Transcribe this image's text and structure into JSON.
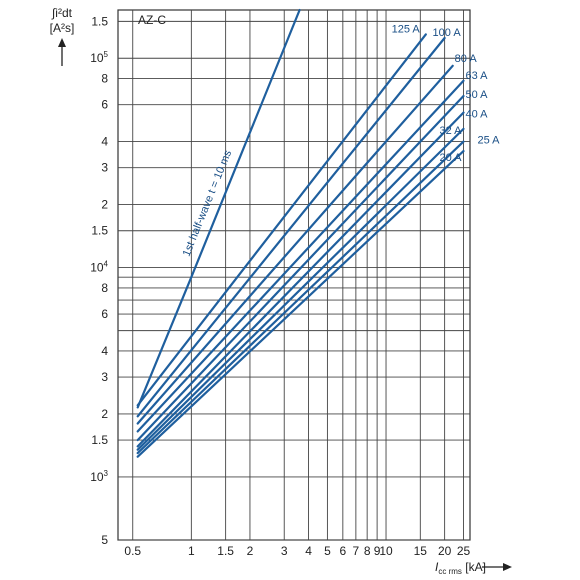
{
  "chart_data": {
    "type": "line",
    "panel_label": "AZ-C",
    "ylabel_lines": [
      "∫i²dt",
      "[A²s]"
    ],
    "xlabel": {
      "var": "I",
      "sub": "cc rms",
      "unit": "[kA]"
    },
    "xscale": "log",
    "yscale": "log",
    "xlim": [
      0.42,
      27
    ],
    "ylim": [
      500,
      170000
    ],
    "grid": true,
    "line_color": "#1f5f9e",
    "x_ticks": [
      {
        "v": 0.5,
        "label": "0.5"
      },
      {
        "v": 1,
        "label": "1"
      },
      {
        "v": 1.5,
        "label": "1.5"
      },
      {
        "v": 2,
        "label": "2"
      },
      {
        "v": 3,
        "label": "3"
      },
      {
        "v": 4,
        "label": "4"
      },
      {
        "v": 5,
        "label": "5"
      },
      {
        "v": 6,
        "label": "6"
      },
      {
        "v": 7,
        "label": "7"
      },
      {
        "v": 8,
        "label": "8"
      },
      {
        "v": 9,
        "label": "9"
      },
      {
        "v": 10,
        "label": "10"
      },
      {
        "v": 15,
        "label": "15"
      },
      {
        "v": 20,
        "label": "20"
      },
      {
        "v": 25,
        "label": "25"
      }
    ],
    "y_ticks": [
      {
        "v": 500,
        "label": "5",
        "sup": ""
      },
      {
        "v": 1000,
        "label": "10",
        "sup": "3"
      },
      {
        "v": 1500,
        "label": "1.5",
        "sup": ""
      },
      {
        "v": 2000,
        "label": "2",
        "sup": ""
      },
      {
        "v": 3000,
        "label": "3",
        "sup": ""
      },
      {
        "v": 4000,
        "label": "4",
        "sup": ""
      },
      {
        "v": 6000,
        "label": "6",
        "sup": ""
      },
      {
        "v": 8000,
        "label": "8",
        "sup": ""
      },
      {
        "v": 10000,
        "label": "10",
        "sup": "4"
      },
      {
        "v": 15000,
        "label": "1.5",
        "sup": ""
      },
      {
        "v": 20000,
        "label": "2",
        "sup": ""
      },
      {
        "v": 30000,
        "label": "3",
        "sup": ""
      },
      {
        "v": 40000,
        "label": "4",
        "sup": ""
      },
      {
        "v": 60000,
        "label": "6",
        "sup": ""
      },
      {
        "v": 80000,
        "label": "8",
        "sup": ""
      },
      {
        "v": 100000,
        "label": "10",
        "sup": "5"
      },
      {
        "v": 150000,
        "label": "1.5",
        "sup": ""
      }
    ],
    "extra_gridlines_y": [
      9000,
      7000,
      5000,
      900000
    ],
    "series": [
      {
        "name": "1st half-wave t = 10 ms",
        "points": [
          [
            0.53,
            2150
          ],
          [
            1,
            9000
          ],
          [
            3.6,
            170000
          ]
        ]
      },
      {
        "name": "125 A",
        "points": [
          [
            0.53,
            2200
          ],
          [
            16,
            130000
          ]
        ]
      },
      {
        "name": "100 A",
        "points": [
          [
            0.53,
            1950
          ],
          [
            20,
            125000
          ]
        ]
      },
      {
        "name": "80 A",
        "points": [
          [
            0.53,
            1800
          ],
          [
            22,
            92000
          ]
        ]
      },
      {
        "name": "63 A",
        "points": [
          [
            0.53,
            1650
          ],
          [
            25,
            78000
          ]
        ]
      },
      {
        "name": "50 A",
        "points": [
          [
            0.53,
            1500
          ],
          [
            25,
            66000
          ]
        ]
      },
      {
        "name": "40 A",
        "points": [
          [
            0.53,
            1400
          ],
          [
            25,
            55000
          ]
        ]
      },
      {
        "name": "32 A",
        "points": [
          [
            0.53,
            1350
          ],
          [
            25,
            46000
          ]
        ]
      },
      {
        "name": "25 A",
        "points": [
          [
            0.53,
            1300
          ],
          [
            25,
            40000
          ]
        ]
      },
      {
        "name": "20 A",
        "points": [
          [
            0.53,
            1250
          ],
          [
            25,
            36000
          ]
        ]
      }
    ],
    "series_label_text": {
      "125 A": "125 A",
      "100 A": "100 A",
      "80 A": "80 A",
      "63 A": "63 A",
      "50 A": "50 A",
      "40 A": "40 A",
      "32 A": "32 A",
      "25 A": "25 A",
      "20 A": "20 A",
      "1st half-wave t = 10 ms": "1st half-wave t = 10 ms"
    }
  }
}
